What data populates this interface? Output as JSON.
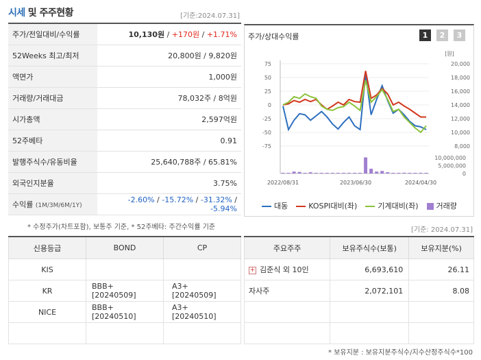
{
  "header": {
    "title_main": "시세",
    "title_sub": "및 주주현황",
    "asof": "[기준:2024.07.31]"
  },
  "summary": {
    "price_label": "주가/전일대비/수익률",
    "price_value": "10,130원",
    "price_change": "+170원",
    "price_return": "+1.71%",
    "w52_label": "52Weeks 최고/최저",
    "w52_value": "20,800원 / 9,820원",
    "face_label": "액면가",
    "face_value": "1,000원",
    "volume_label": "거래량/거래대금",
    "volume_value": "78,032주 / 8억원",
    "mcap_label": "시가총액",
    "mcap_value": "2,597억원",
    "beta_label": "52주베타",
    "beta_value": "0.91",
    "shares_label": "발행주식수/유동비율",
    "shares_value": "25,640,788주 / 65.81%",
    "foreign_label": "외국인지분율",
    "foreign_value": "3.75%",
    "return_label": "수익률",
    "return_periods": "(1M/3M/6M/1Y)",
    "return_1m": "-2.60%",
    "return_3m": "-15.72%",
    "return_6m": "-31.32%",
    "return_1y": "-5.94%"
  },
  "note_summary": "* 수정주가(차트포함), 보통주 기준, * 52주베타: 주간수익률 기준",
  "note_asof2": "[기준: 2024.07.31]",
  "chart": {
    "title": "주가/상대수익률",
    "pages": [
      "1",
      "2",
      "3"
    ],
    "left_ticks": [
      "75",
      "50",
      "25",
      "0",
      "-25",
      "-50",
      "-75"
    ],
    "right_unit": "[원]",
    "right_ticks": [
      "20,000",
      "18,000",
      "16,000",
      "14,000",
      "12,000",
      "10,000",
      "8,000"
    ],
    "vol_ticks": [
      "10,000,000",
      "5,000,000",
      "0"
    ],
    "x_ticks": [
      "2022/08/31",
      "2023/06/30",
      "2024/04/30"
    ],
    "legend": [
      "대동",
      "KOSPI대비(좌)",
      "기계대비(좌)",
      "거래량"
    ],
    "colors": {
      "stock": "#2c6fc0",
      "kospi": "#d2381e",
      "machine": "#8cc23a",
      "volume": "#a07fd0"
    }
  },
  "chart_data": {
    "type": "line",
    "series": [
      {
        "name": "대동",
        "axis": "left",
        "values": [
          -2,
          -45,
          -28,
          -16,
          -18,
          -28,
          -20,
          -12,
          -22,
          -35,
          -44,
          -32,
          -22,
          -38,
          -45,
          56,
          -18,
          10,
          35,
          8,
          -15,
          -8,
          -18,
          -30,
          -38,
          -40,
          -45
        ]
      },
      {
        "name": "KOSPI대비(좌)",
        "axis": "left",
        "values": [
          0,
          2,
          8,
          5,
          10,
          6,
          10,
          0,
          -8,
          -2,
          5,
          0,
          10,
          6,
          5,
          62,
          12,
          18,
          30,
          20,
          0,
          5,
          -2,
          -8,
          -15,
          -22,
          -22
        ]
      },
      {
        "name": "기계대비(좌)",
        "axis": "left",
        "values": [
          0,
          5,
          15,
          12,
          20,
          15,
          12,
          -2,
          -8,
          -10,
          -5,
          -3,
          5,
          -2,
          -10,
          45,
          5,
          15,
          28,
          10,
          -12,
          -8,
          -22,
          -32,
          -42,
          -50,
          -38
        ]
      },
      {
        "name": "거래량",
        "axis": "volume",
        "values": [
          0.1,
          0.3,
          1.2,
          1.0,
          0.4,
          0.8,
          0.3,
          0.2,
          0.2,
          0.1,
          0.1,
          0.2,
          0.2,
          0.3,
          0.4,
          10.2,
          3.0,
          1.2,
          1.6,
          0.8,
          0.4,
          0.3,
          0.5,
          0.3,
          0.2,
          0.2,
          0.1
        ]
      }
    ],
    "y_left_range": [
      -75,
      75
    ],
    "y_right_range": [
      8000,
      20000
    ],
    "volume_range": [
      0,
      10000000
    ]
  },
  "credit": {
    "headers": [
      "신용등급",
      "BOND",
      "CP"
    ],
    "rows": [
      [
        "KIS",
        "",
        ""
      ],
      [
        "KR",
        "BBB+ [20240509]",
        "A3+ [20240509]"
      ],
      [
        "NICE",
        "BBB+ [20240510]",
        "A3+ [20240510]"
      ],
      [
        "",
        "",
        ""
      ]
    ]
  },
  "holders": {
    "headers": [
      "주요주주",
      "보유주식수(보통)",
      "보유지분(%)"
    ],
    "rows": [
      [
        "김준식 외 10인",
        "6,693,610",
        "26.11"
      ],
      [
        "자사주",
        "2,072,101",
        "8.08"
      ],
      [
        "",
        "",
        ""
      ],
      [
        "",
        "",
        ""
      ]
    ]
  },
  "note_holders": "* 보유지분 : 보유지분주식수/지수산정주식수*100"
}
